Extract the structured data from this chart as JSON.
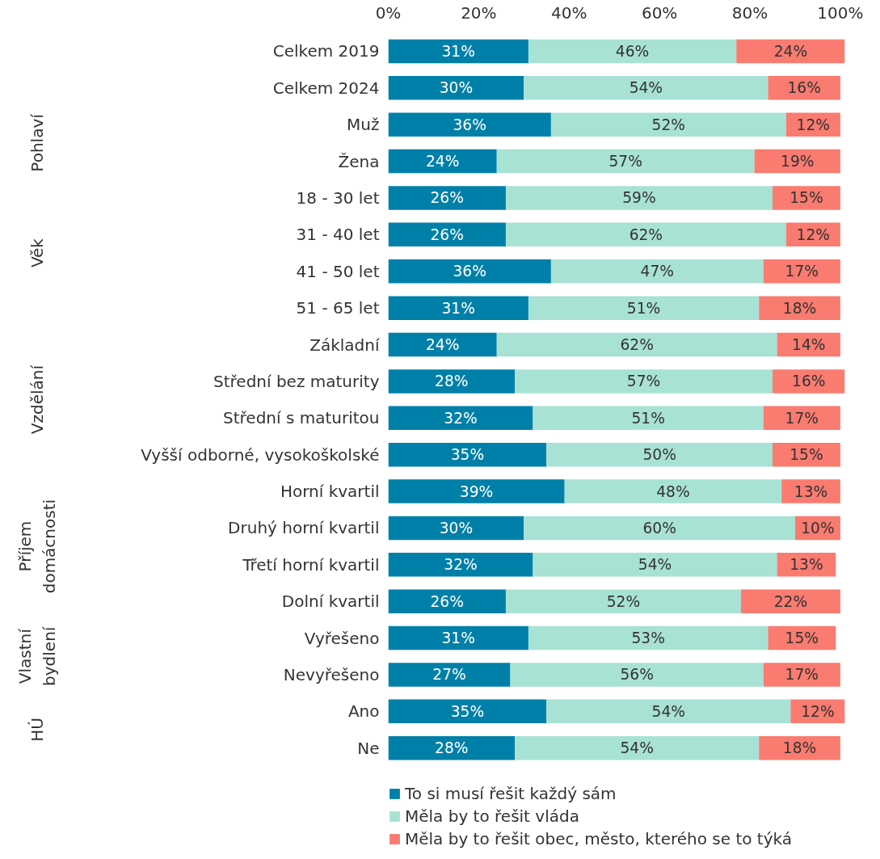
{
  "chart_data": {
    "type": "bar",
    "orientation": "horizontal",
    "stacked": true,
    "legend": "bottom",
    "grid": false,
    "categories": [
      "Celkem 2019",
      "Celkem 2024",
      "Muž",
      "Žena",
      "18 - 30 let",
      "31 - 40 let",
      "41 - 50 let",
      "51 - 65 let",
      "Základní",
      "Střední bez maturity",
      "Střední s maturitou",
      "Vyšší odborné, vysokoškolské",
      "Horní kvartil",
      "Druhý horní kvartil",
      "Třetí horní kvartil",
      "Dolní kvartil",
      "Vyřešeno",
      "Nevyřešeno",
      "Ano",
      "Ne"
    ],
    "series": [
      {
        "name": "To si musí řešit každý sám",
        "color": "#0080a8",
        "values": [
          31,
          30,
          36,
          24,
          26,
          26,
          36,
          31,
          24,
          28,
          32,
          35,
          39,
          30,
          32,
          26,
          31,
          27,
          35,
          28
        ],
        "value_labels": [
          "31%",
          "30%",
          "36%",
          "24%",
          "26%",
          "26%",
          "36%",
          "31%",
          "24%",
          "28%",
          "32%",
          "35%",
          "39%",
          "30%",
          "32%",
          "26%",
          "31%",
          "27%",
          "35%",
          "28%"
        ]
      },
      {
        "name": "Měla by to řešit vláda",
        "color": "#a8e2d4",
        "values": [
          46,
          54,
          52,
          57,
          59,
          62,
          47,
          51,
          62,
          57,
          51,
          50,
          48,
          60,
          54,
          52,
          53,
          56,
          54,
          54
        ],
        "value_labels": [
          "46%",
          "54%",
          "52%",
          "57%",
          "59%",
          "62%",
          "47%",
          "51%",
          "62%",
          "57%",
          "51%",
          "50%",
          "48%",
          "60%",
          "54%",
          "52%",
          "53%",
          "56%",
          "54%",
          "54%"
        ]
      },
      {
        "name": "Měla by to řešit obec, město, kterého se to týká",
        "color": "#fa7b70",
        "values": [
          24,
          16,
          12,
          19,
          15,
          12,
          17,
          18,
          14,
          16,
          17,
          15,
          13,
          10,
          13,
          22,
          15,
          17,
          12,
          18
        ],
        "value_labels": [
          "24%",
          "16%",
          "12%",
          "19%",
          "15%",
          "12%",
          "17%",
          "18%",
          "14%",
          "16%",
          "17%",
          "15%",
          "13%",
          "10%",
          "13%",
          "22%",
          "15%",
          "17%",
          "12%",
          "18%"
        ]
      }
    ],
    "xlim": [
      0,
      101
    ],
    "xticks": [
      {
        "value": 0,
        "label": "0%"
      },
      {
        "value": 20,
        "label": "20%"
      },
      {
        "value": 40,
        "label": "40%"
      },
      {
        "value": 60,
        "label": "60%"
      },
      {
        "value": 80,
        "label": "80%"
      },
      {
        "value": 100,
        "label": "100%"
      }
    ],
    "annotations": [
      "Pohlaví",
      "Věk",
      "Vzdělání",
      "Příjem domácnosti",
      "Vlastní bydlení",
      "HÚ"
    ]
  }
}
